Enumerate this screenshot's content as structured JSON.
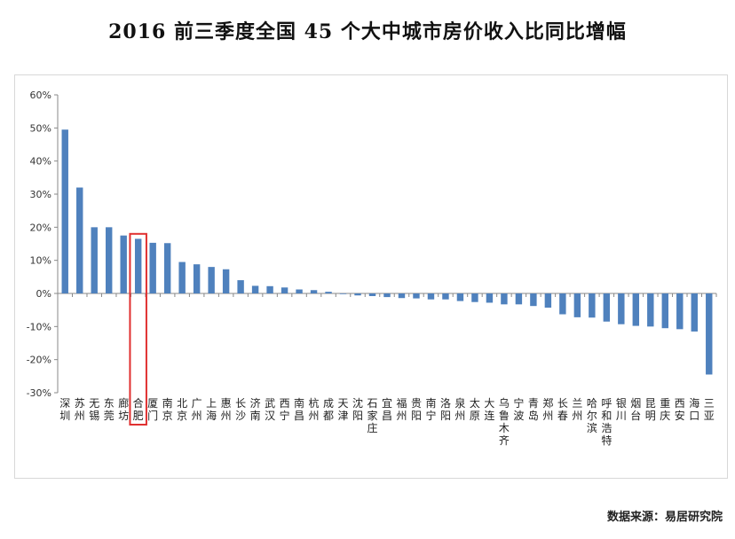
{
  "title": "2016 前三季度全国 45 个大中城市房价收入比同比增幅",
  "source": "数据来源：易居研究院",
  "chart_data": {
    "type": "bar",
    "ylim": [
      -30,
      60
    ],
    "yticks": [
      -30,
      -20,
      -10,
      0,
      10,
      20,
      30,
      40,
      50,
      60
    ],
    "ytick_labels": [
      "-30%",
      "-20%",
      "-10%",
      "0%",
      "10%",
      "20%",
      "30%",
      "40%",
      "50%",
      "60%"
    ],
    "grid": false,
    "bar_color": "#4f81bd",
    "highlight_color": "#e03030",
    "highlight_index": 5,
    "categories": [
      "深圳",
      "苏州",
      "无锡",
      "东莞",
      "廊坊",
      "合肥",
      "厦门",
      "南京",
      "北京",
      "广州",
      "上海",
      "惠州",
      "长沙",
      "济南",
      "武汉",
      "西宁",
      "南昌",
      "杭州",
      "成都",
      "天津",
      "沈阳",
      "石家庄",
      "宜昌",
      "福州",
      "贵阳",
      "南宁",
      "洛阳",
      "泉州",
      "太原",
      "大连",
      "乌鲁木齐",
      "宁波",
      "青岛",
      "郑州",
      "长春",
      "兰州",
      "哈尔滨",
      "呼和浩特",
      "银川",
      "烟台",
      "昆明",
      "重庆",
      "西安",
      "海口",
      "三亚"
    ],
    "values": [
      49.5,
      32,
      20,
      20,
      17.5,
      16.5,
      15.3,
      15.2,
      9.5,
      8.8,
      8,
      7.3,
      4,
      2.3,
      2.2,
      1.8,
      1.2,
      1,
      0.5,
      -0.2,
      -0.6,
      -0.8,
      -1.1,
      -1.4,
      -1.5,
      -1.8,
      -1.8,
      -2.3,
      -2.6,
      -2.8,
      -3.3,
      -3.3,
      -3.8,
      -4.3,
      -6.3,
      -7.2,
      -7.3,
      -8.5,
      -9.3,
      -9.8,
      -10,
      -10.5,
      -10.8,
      -11.5,
      -24.5
    ]
  }
}
